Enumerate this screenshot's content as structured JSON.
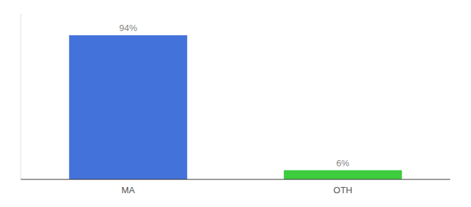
{
  "chart_data": {
    "type": "bar",
    "categories": [
      "MA",
      "OTH"
    ],
    "values": [
      94,
      6
    ],
    "value_labels": [
      "94%",
      "6%"
    ],
    "colors": [
      "#4472db",
      "#3dcc3d"
    ],
    "ylim": [
      0,
      108
    ],
    "data_labels": true,
    "tick_labels": "x"
  }
}
